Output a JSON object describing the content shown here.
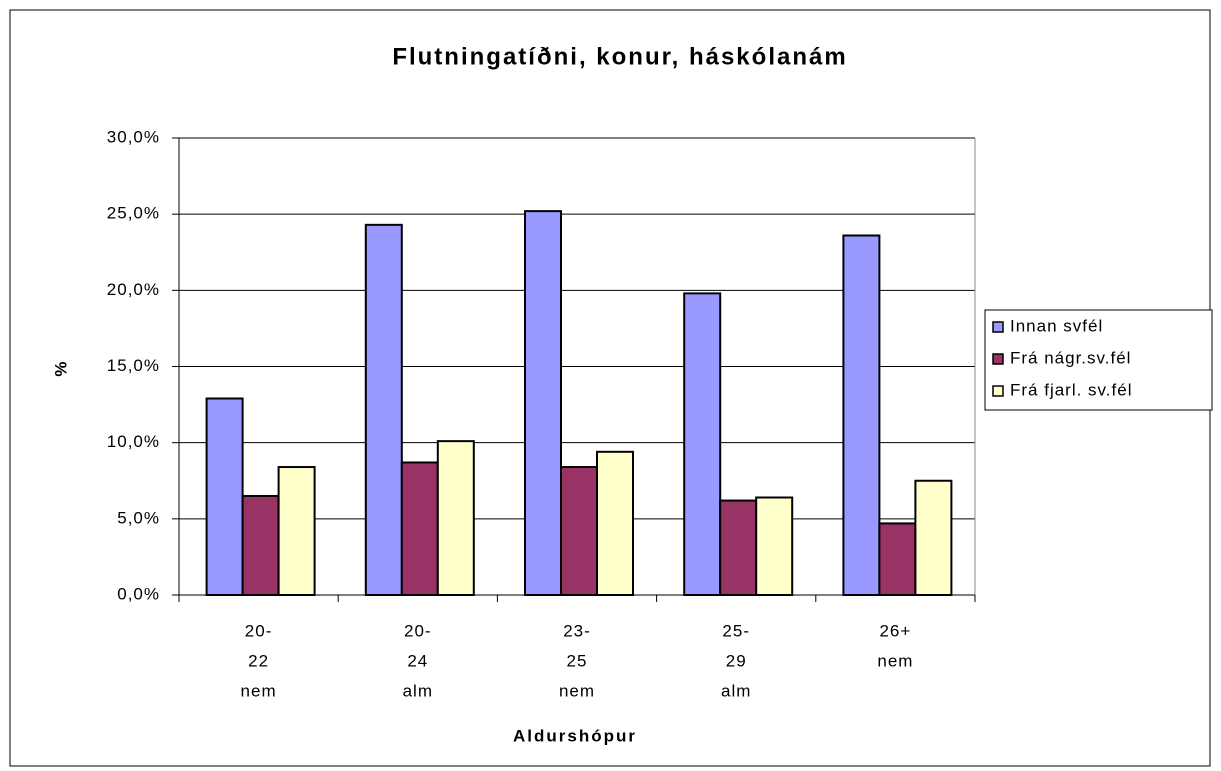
{
  "chart_data": {
    "type": "bar",
    "title": "Flutningatíðni, konur, háskólanám",
    "x_label": "Aldurshópur",
    "y_label": "%",
    "categories": [
      [
        "20-",
        "22",
        "nem"
      ],
      [
        "20-",
        "24",
        "alm"
      ],
      [
        "23-",
        "25",
        "nem"
      ],
      [
        "25-",
        "29",
        "alm"
      ],
      [
        "26+",
        "nem"
      ]
    ],
    "series": [
      {
        "name": "Innan svfél",
        "color": "#9999ff",
        "values": [
          12.9,
          24.3,
          25.2,
          19.8,
          23.6
        ]
      },
      {
        "name": "Frá nágr.sv.fél",
        "color": "#993366",
        "values": [
          6.5,
          8.7,
          8.4,
          6.2,
          4.7
        ]
      },
      {
        "name": "Frá fjarl. sv.fél",
        "color": "#ffffcc",
        "values": [
          8.4,
          10.1,
          9.4,
          6.4,
          7.5
        ]
      }
    ],
    "ylim": [
      0,
      30
    ],
    "yticks": [
      {
        "value": 0,
        "label": "0,0%"
      },
      {
        "value": 5,
        "label": "5,0%"
      },
      {
        "value": 10,
        "label": "10,0%"
      },
      {
        "value": 15,
        "label": "15,0%"
      },
      {
        "value": 20,
        "label": "20,0%"
      },
      {
        "value": 25,
        "label": "25,0%"
      },
      {
        "value": 30,
        "label": "30,0%"
      }
    ],
    "grid": true,
    "legend": "right"
  }
}
